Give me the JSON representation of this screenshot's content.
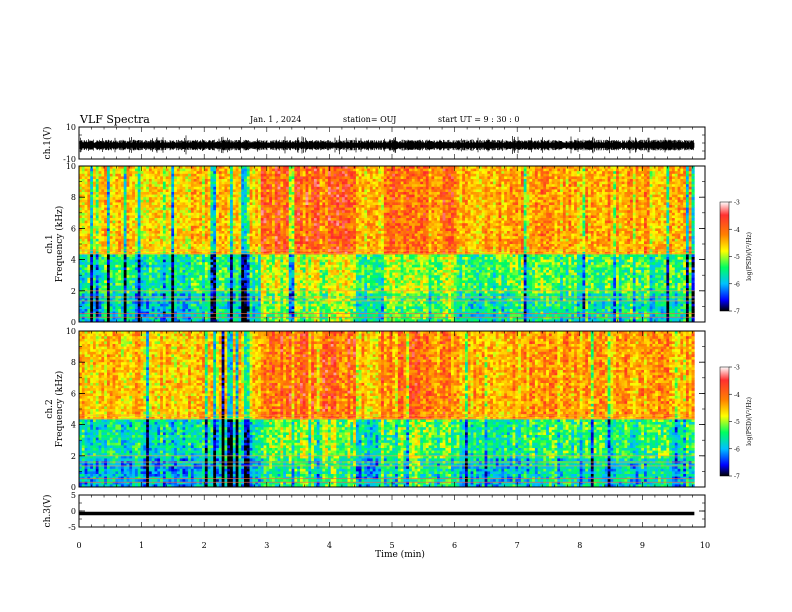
{
  "header": {
    "title": "VLF Spectra",
    "date": "Jan. 1 , 2024",
    "station": "station= OUJ",
    "start": "start  UT =  9 : 30 : 0"
  },
  "chart_data": [
    {
      "type": "line",
      "name": "ch1-waveform",
      "ylabel": "ch.1(V)",
      "ylim": [
        -10,
        10
      ],
      "yticks": [
        "10",
        "-10"
      ],
      "xlim": [
        0,
        10
      ],
      "description_values": {
        "baseline": -1.5,
        "amplitude_range": [
          -5,
          4
        ]
      }
    },
    {
      "type": "heatmap",
      "name": "ch1-spectrogram",
      "ylabel": "ch.1\nFrequency (kHz)",
      "ylim": [
        0,
        10
      ],
      "yticks": [
        "0",
        "2",
        "4",
        "6",
        "8",
        "10"
      ],
      "xlim": [
        0,
        10
      ],
      "colorbar": {
        "label": "log(PSD)(V²/Hz)",
        "ticks": [
          "-3",
          "-4",
          "-5",
          "-6",
          "-7"
        ],
        "range": [
          -7,
          -3
        ]
      }
    },
    {
      "type": "heatmap",
      "name": "ch2-spectrogram",
      "ylabel": "ch.2\nFrequency (kHz)",
      "ylim": [
        0,
        10
      ],
      "yticks": [
        "0",
        "2",
        "4",
        "6",
        "8",
        "10"
      ],
      "xlim": [
        0,
        10
      ],
      "colorbar": {
        "label": "log(PSD)(V²/Hz)",
        "ticks": [
          "-3",
          "-4",
          "-5",
          "-6",
          "-7"
        ],
        "range": [
          -7,
          -3
        ]
      }
    },
    {
      "type": "line",
      "name": "ch3-waveform",
      "ylabel": "ch.3(V)",
      "ylim": [
        -5,
        5
      ],
      "yticks": [
        "5",
        "0",
        "-5"
      ],
      "xlim": [
        0,
        10
      ],
      "values_const": -0.8
    }
  ],
  "xaxis": {
    "label": "Time (min)",
    "ticks": [
      "0",
      "1",
      "2",
      "3",
      "4",
      "5",
      "6",
      "7",
      "8",
      "9",
      "10"
    ]
  }
}
